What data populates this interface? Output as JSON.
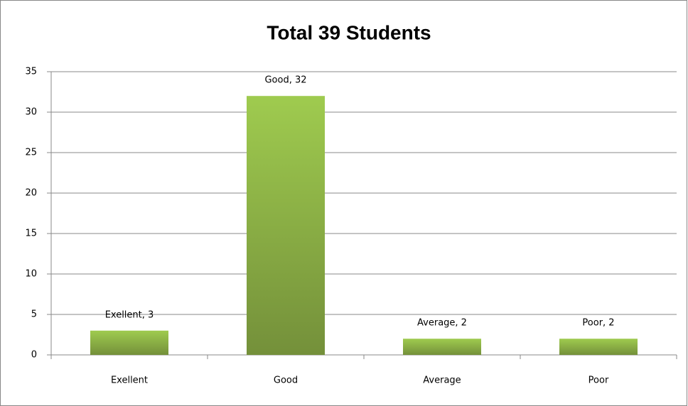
{
  "chart_data": {
    "type": "bar",
    "title": "Total 39 Students",
    "categories": [
      "Exellent",
      "Good",
      "Average",
      "Poor"
    ],
    "values": [
      3,
      32,
      2,
      2
    ],
    "value_labels": [
      "Exellent, 3",
      "Good, 32",
      "Average, 2",
      "Poor, 2"
    ],
    "color": [
      "#9fcb4f",
      "#74903a"
    ],
    "ylim": [
      0,
      35
    ],
    "yticks": [
      0,
      5,
      10,
      15,
      20,
      25,
      30,
      35
    ],
    "grid": true
  }
}
